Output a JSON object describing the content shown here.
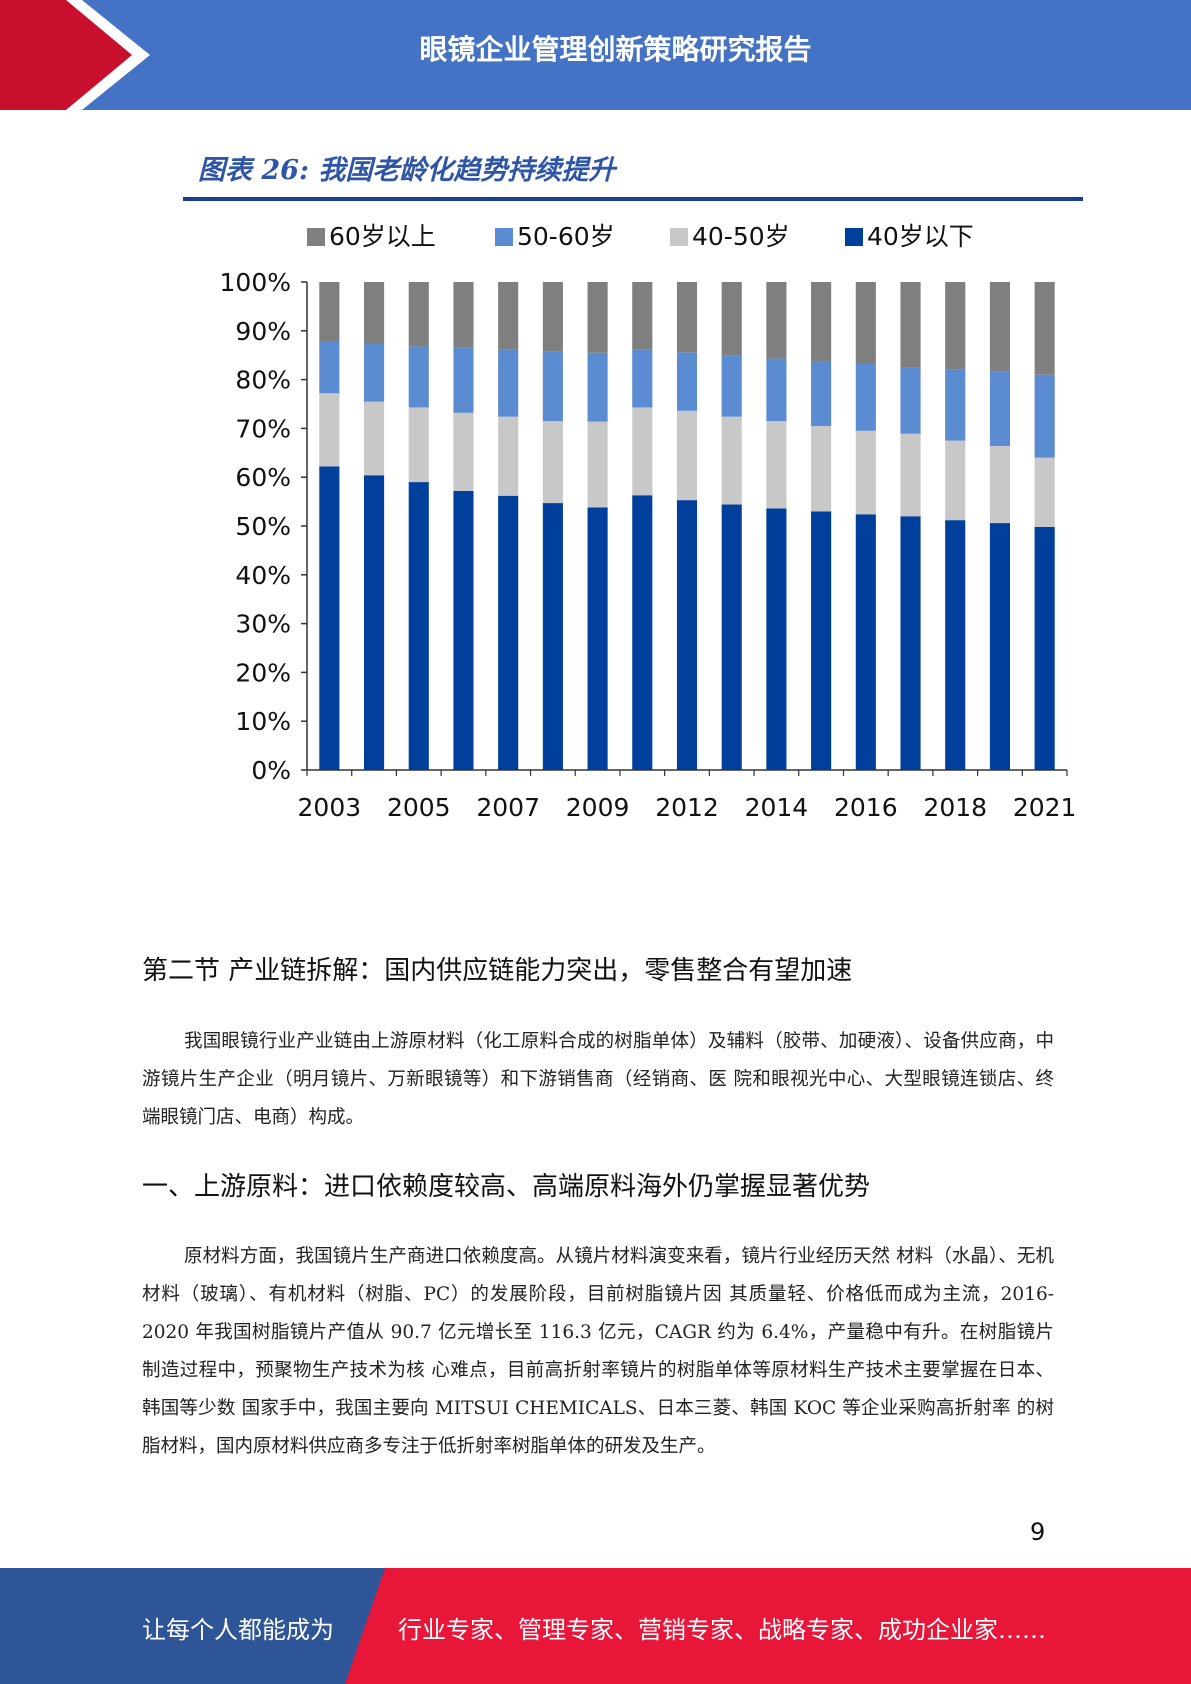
{
  "header": {
    "title": "眼镜企业管理创新策略研究报告",
    "colors": {
      "blue": "#4472c4",
      "red": "#c8102e"
    }
  },
  "figure": {
    "caption": "图表 26:  我国老龄化趋势持续提升"
  },
  "chart_data": {
    "type": "bar",
    "stacked": true,
    "percent_stacked": true,
    "categories": [
      "2003",
      "2004",
      "2005",
      "2006",
      "2007",
      "2008",
      "2009",
      "2011",
      "2012",
      "2013",
      "2014",
      "2015",
      "2016",
      "2017",
      "2018",
      "2019",
      "2021"
    ],
    "x_tick_labels": [
      "2003",
      "2005",
      "2007",
      "2009",
      "2012",
      "2014",
      "2016",
      "2018",
      "2021"
    ],
    "y_tick_labels": [
      "0%",
      "10%",
      "20%",
      "30%",
      "40%",
      "50%",
      "60%",
      "70%",
      "80%",
      "90%",
      "100%"
    ],
    "ylim": [
      0,
      100
    ],
    "legend_position": "top",
    "legend_order": [
      "60岁以上",
      "50-60岁",
      "40-50岁",
      "40岁以下"
    ],
    "series": [
      {
        "name": "40岁以下",
        "color": "#003f9b",
        "values": [
          62.2,
          60.4,
          59.0,
          57.2,
          56.2,
          54.7,
          53.8,
          56.3,
          55.3,
          54.4,
          53.6,
          53.0,
          52.4,
          52.0,
          51.2,
          50.6,
          49.8
        ]
      },
      {
        "name": "40-50岁",
        "color": "#c8c8c8",
        "values": [
          15.0,
          15.1,
          15.3,
          16.0,
          16.2,
          16.8,
          17.6,
          18.0,
          18.3,
          18.0,
          17.9,
          17.5,
          17.1,
          16.9,
          16.3,
          15.8,
          14.2
        ]
      },
      {
        "name": "50-60岁",
        "color": "#5b8bd0",
        "values": [
          10.6,
          11.8,
          12.5,
          13.4,
          13.7,
          14.3,
          14.1,
          11.8,
          12.0,
          12.5,
          12.8,
          13.2,
          13.8,
          13.6,
          14.6,
          15.2,
          17.0
        ]
      },
      {
        "name": "60岁以上",
        "color": "#7f7f7f",
        "values": [
          12.2,
          12.7,
          13.2,
          13.4,
          13.9,
          14.2,
          14.5,
          13.9,
          14.4,
          15.1,
          15.7,
          16.3,
          16.7,
          17.5,
          17.9,
          18.4,
          19.0
        ]
      }
    ]
  },
  "section2": {
    "heading": "第二节 产业链拆解：国内供应链能力突出，零售整合有望加速",
    "paragraph": "我国眼镜行业产业链由上游原材料（化工原料合成的树脂单体）及辅料（胶带、加硬液）、设备供应商，中游镜片生产企业（明月镜片、万新眼镜等）和下游销售商（经销商、医 院和眼视光中心、大型眼镜连锁店、终端眼镜门店、电商）构成。"
  },
  "section3": {
    "heading": "一、上游原料：进口依赖度较高、高端原料海外仍掌握显著优势",
    "paragraph": "原材料方面，我国镜片生产商进口依赖度高。从镜片材料演变来看，镜片行业经历天然 材料（水晶）、无机材料（玻璃）、有机材料（树脂、PC）的发展阶段，目前树脂镜片因 其质量轻、价格低而成为主流，2016-2020 年我国树脂镜片产值从 90.7 亿元增长至 116.3 亿元，CAGR 约为 6.4%，产量稳中有升。在树脂镜片制造过程中，预聚物生产技术为核 心难点，目前高折射率镜片的树脂单体等原材料生产技术主要掌握在日本、韩国等少数 国家手中，我国主要向 MITSUI CHEMICALS、日本三菱、韩国 KOC 等企业采购高折射率 的树脂材料，国内原材料供应商多专注于低折射率树脂单体的研发及生产。"
  },
  "page_number": "9",
  "footer": {
    "left_text": "让每个人都能成为",
    "right_text": "行业专家、管理专家、营销专家、战略专家、成功企业家……",
    "colors": {
      "blue": "#2e5597",
      "red": "#e8173a"
    }
  }
}
